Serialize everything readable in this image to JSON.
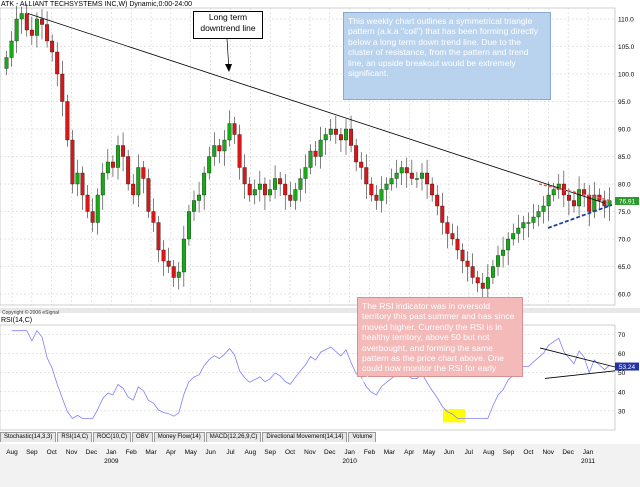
{
  "chart_data": [
    {
      "type": "candlestick",
      "title": "ATK - ALLIANT TECHSYSTEMS INC,W) Dynamic,0:00-24:00",
      "copyright": "Copyright © 2006 eSignal",
      "ylim": [
        58,
        112
      ],
      "yticks": [
        60.0,
        65.0,
        70.0,
        75.0,
        80.0,
        85.0,
        90.0,
        95.0,
        100.0,
        105.0,
        110.0
      ],
      "last_price_label": "76.91",
      "last_price": 76.91,
      "weekly_close": [
        103,
        106,
        110,
        111,
        108,
        107,
        110,
        109,
        106,
        104,
        100,
        95,
        88,
        80,
        82,
        78,
        75,
        73,
        78,
        82,
        84,
        83,
        87,
        85,
        80,
        78,
        83,
        81,
        75,
        73,
        68,
        66,
        65,
        63,
        64,
        70,
        75,
        77,
        78,
        82,
        85,
        87,
        86,
        88,
        91,
        89,
        83,
        80,
        78,
        79,
        80,
        78,
        79,
        81,
        80,
        78,
        77,
        79,
        81,
        83,
        86,
        85,
        88,
        89,
        90,
        89,
        88,
        90,
        87,
        84,
        83,
        80,
        78,
        77,
        79,
        80,
        81,
        82,
        83,
        82,
        81,
        81,
        82,
        80,
        78,
        76,
        73,
        71,
        70,
        68,
        66,
        65,
        63,
        62,
        61,
        63,
        65,
        67,
        68,
        70,
        71,
        72,
        73,
        73,
        74,
        75,
        76,
        78,
        79,
        80,
        78,
        77,
        76,
        79,
        78,
        75,
        78,
        77,
        76,
        77
      ],
      "annotations": {
        "trendline_label": "Long term downtrend line",
        "note": "This weekly chart outlines a symmetrical triangle pattern (a.k.a \"coil\") that has been forming directly below a long term down trend line.  Due to the cluster of resistance, from the pattern and trend line, an upside breakout would be extremely significant."
      },
      "colors": {
        "up": "#18a818",
        "down": "#d81818",
        "trendline": "#000000",
        "triangle_upper": "#e05050",
        "triangle_lower": "#2040a0",
        "last_price_bg": "#2e9a2e"
      }
    },
    {
      "type": "line",
      "title": "RSI(14,C)",
      "ylim": [
        20,
        75
      ],
      "yticks": [
        30,
        40,
        50,
        60,
        70
      ],
      "last_value_label": "53.24",
      "last_value": 53.24,
      "note": "The RSI indicator was in oversold territory this past summer and has since moved higher. Currently the RSI is in healthy territory, above 50 but not overbought, and  forming the same pattern as the price chart above. One could now monitor the RSI for early clues.",
      "colors": {
        "line": "#8080ff",
        "highlight": "#ffff00",
        "last_value_bg": "#2233aa"
      }
    }
  ],
  "x_axis": {
    "months": [
      "Aug",
      "Sep",
      "Oct",
      "Nov",
      "Dec",
      "Jan",
      "Feb",
      "Mar",
      "Apr",
      "May",
      "Jun",
      "Jul",
      "Aug",
      "Sep",
      "Oct",
      "Nov",
      "Dec",
      "Jan",
      "Feb",
      "Mar",
      "Apr",
      "May",
      "Jun",
      "Jul",
      "Aug",
      "Sep",
      "Oct",
      "Nov",
      "Dec",
      "Jan"
    ],
    "years": [
      "2009",
      "2010",
      "2011"
    ]
  },
  "tabs": [
    "Stochastic(14,3,3)",
    "RSI(14,C)",
    "ROC(10,C)",
    "OBV",
    "Money Flow(14)",
    "MACD(12,26,9,C)",
    "Directional Movement(14,14)",
    "Volume"
  ]
}
